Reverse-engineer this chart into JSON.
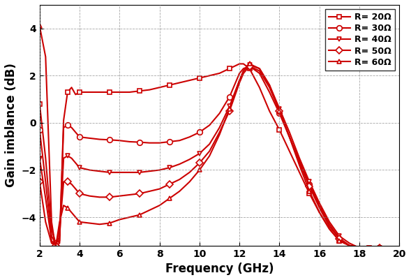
{
  "xlabel": "Frequency (GHz)",
  "ylabel": "Gain imblance (dB)",
  "xlim": [
    2,
    20
  ],
  "ylim": [
    -5.2,
    5.0
  ],
  "xticks": [
    2,
    4,
    6,
    8,
    10,
    12,
    14,
    16,
    18,
    20
  ],
  "yticks": [
    -4,
    -2,
    0,
    2,
    4
  ],
  "color": "#cc0000",
  "legend_labels": [
    "R= 20Ω",
    "R= 30Ω",
    "R= 40Ω",
    "R= 50Ω",
    "R= 60Ω"
  ],
  "markers": [
    "s",
    "o",
    "v",
    "D",
    "^"
  ],
  "series": {
    "R20": {
      "freq": [
        2.0,
        2.3,
        2.6,
        2.8,
        3.0,
        3.2,
        3.4,
        3.6,
        3.8,
        4.0,
        4.5,
        5.0,
        5.5,
        6.0,
        6.5,
        7.0,
        7.5,
        8.0,
        8.5,
        9.0,
        9.5,
        10.0,
        10.5,
        11.0,
        11.5,
        12.0,
        12.2,
        12.5,
        13.0,
        13.5,
        14.0,
        14.5,
        15.0,
        15.5,
        16.0,
        16.5,
        17.0,
        17.5,
        18.0,
        18.5,
        19.0,
        20.0
      ],
      "gain": [
        0.8,
        -1.5,
        -4.5,
        -5.1,
        -5.1,
        0.1,
        1.3,
        1.5,
        1.2,
        1.3,
        1.3,
        1.3,
        1.3,
        1.3,
        1.3,
        1.35,
        1.4,
        1.5,
        1.6,
        1.7,
        1.8,
        1.9,
        2.0,
        2.1,
        2.3,
        2.5,
        2.5,
        2.3,
        1.5,
        0.5,
        -0.3,
        -1.2,
        -2.1,
        -3.0,
        -3.8,
        -4.5,
        -5.0,
        -5.2,
        -5.3,
        -5.3,
        -5.3,
        -5.3
      ]
    },
    "R30": {
      "freq": [
        2.0,
        2.3,
        2.6,
        2.8,
        3.0,
        3.2,
        3.4,
        3.6,
        3.8,
        4.0,
        4.5,
        5.0,
        5.5,
        6.0,
        6.5,
        7.0,
        7.5,
        8.0,
        8.5,
        9.0,
        9.5,
        10.0,
        10.5,
        11.0,
        11.5,
        12.0,
        12.2,
        12.5,
        13.0,
        13.5,
        14.0,
        14.5,
        15.0,
        15.5,
        16.0,
        16.5,
        17.0,
        17.5,
        18.0,
        19.0,
        20.0
      ],
      "gain": [
        -0.3,
        -2.5,
        -4.8,
        -5.1,
        -5.0,
        -0.2,
        -0.1,
        -0.2,
        -0.4,
        -0.6,
        -0.65,
        -0.7,
        -0.72,
        -0.75,
        -0.8,
        -0.82,
        -0.85,
        -0.85,
        -0.8,
        -0.75,
        -0.6,
        -0.4,
        -0.1,
        0.4,
        1.1,
        2.1,
        2.3,
        2.4,
        2.1,
        1.3,
        0.4,
        -0.6,
        -1.6,
        -2.6,
        -3.5,
        -4.3,
        -4.9,
        -5.2,
        -5.3,
        -5.3,
        -5.3
      ]
    },
    "R40": {
      "freq": [
        2.0,
        2.3,
        2.6,
        2.8,
        3.0,
        3.2,
        3.4,
        3.6,
        3.8,
        4.0,
        4.5,
        5.0,
        5.5,
        6.0,
        6.5,
        7.0,
        7.5,
        8.0,
        8.5,
        9.0,
        9.5,
        10.0,
        10.5,
        11.0,
        11.5,
        12.0,
        12.2,
        12.5,
        13.0,
        13.5,
        14.0,
        14.5,
        15.0,
        15.5,
        16.0,
        16.5,
        17.0,
        17.5,
        18.0,
        19.0,
        20.0
      ],
      "gain": [
        -1.5,
        -3.2,
        -5.0,
        -5.2,
        -4.8,
        -1.5,
        -1.4,
        -1.5,
        -1.7,
        -1.9,
        -2.0,
        -2.05,
        -2.1,
        -2.1,
        -2.1,
        -2.1,
        -2.05,
        -2.0,
        -1.9,
        -1.75,
        -1.55,
        -1.3,
        -0.9,
        -0.2,
        0.7,
        1.8,
        2.2,
        2.45,
        2.3,
        1.6,
        0.6,
        -0.4,
        -1.5,
        -2.5,
        -3.4,
        -4.2,
        -4.8,
        -5.1,
        -5.3,
        -5.3,
        -5.3
      ]
    },
    "R50": {
      "freq": [
        2.0,
        2.3,
        2.6,
        2.8,
        3.0,
        3.2,
        3.4,
        3.6,
        3.8,
        4.0,
        4.5,
        5.0,
        5.5,
        6.0,
        6.5,
        7.0,
        7.5,
        8.0,
        8.5,
        9.0,
        9.5,
        10.0,
        10.5,
        11.0,
        11.5,
        12.0,
        12.2,
        12.5,
        13.0,
        13.5,
        14.0,
        14.5,
        15.0,
        15.5,
        16.0,
        16.5,
        17.0,
        17.5,
        18.0,
        19.0,
        20.0
      ],
      "gain": [
        -2.5,
        -4.2,
        -5.1,
        -5.2,
        -4.5,
        -2.5,
        -2.5,
        -2.6,
        -2.8,
        -3.0,
        -3.1,
        -3.15,
        -3.15,
        -3.1,
        -3.05,
        -3.0,
        -2.9,
        -2.8,
        -2.6,
        -2.4,
        -2.1,
        -1.7,
        -1.2,
        -0.4,
        0.5,
        1.7,
        2.1,
        2.4,
        2.2,
        1.5,
        0.5,
        -0.6,
        -1.7,
        -2.7,
        -3.6,
        -4.4,
        -4.9,
        -5.2,
        -5.3,
        -5.3,
        -5.3
      ]
    },
    "R60": {
      "freq": [
        2.0,
        2.3,
        2.6,
        2.8,
        3.0,
        3.2,
        3.4,
        3.6,
        3.8,
        4.0,
        4.5,
        5.0,
        5.5,
        6.0,
        6.5,
        7.0,
        7.5,
        8.0,
        8.5,
        9.0,
        9.5,
        10.0,
        10.5,
        11.0,
        11.5,
        12.0,
        12.2,
        12.5,
        13.0,
        13.5,
        14.0,
        14.5,
        15.0,
        15.5,
        16.0,
        16.5,
        17.0,
        17.5,
        18.0,
        19.0,
        20.0
      ],
      "gain": [
        4.1,
        2.8,
        -4.2,
        -5.3,
        -4.2,
        -3.5,
        -3.6,
        -3.8,
        -4.0,
        -4.2,
        -4.25,
        -4.3,
        -4.25,
        -4.1,
        -4.0,
        -3.9,
        -3.7,
        -3.5,
        -3.2,
        -2.9,
        -2.5,
        -2.0,
        -1.4,
        -0.5,
        0.6,
        1.8,
        2.2,
        2.5,
        2.3,
        1.6,
        0.5,
        -0.6,
        -1.8,
        -2.9,
        -3.8,
        -4.5,
        -5.0,
        -5.2,
        -5.3,
        -5.3,
        -5.3
      ]
    }
  }
}
